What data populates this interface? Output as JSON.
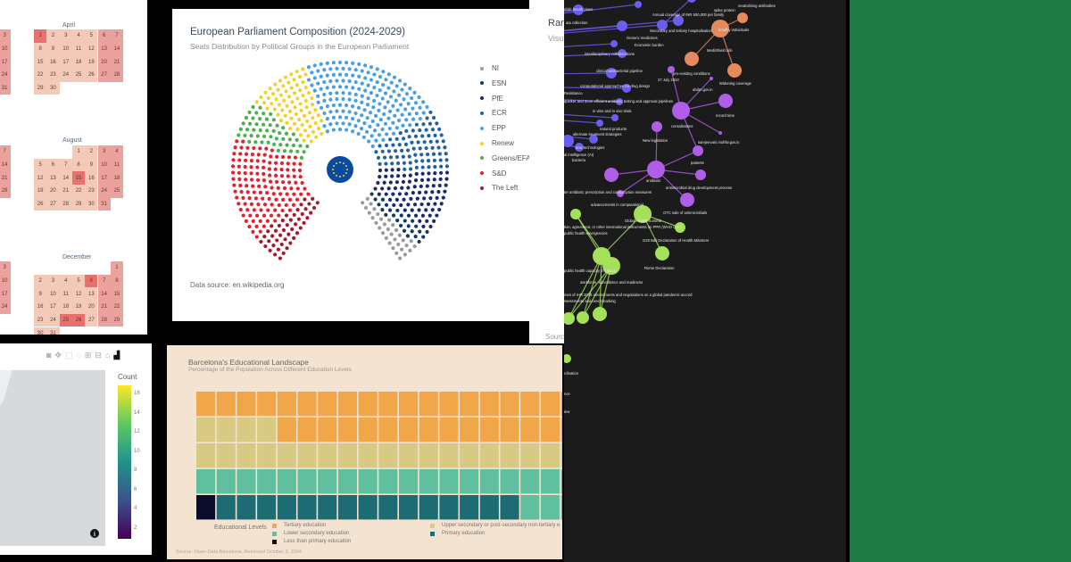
{
  "calendar": {
    "colors": {
      "weekday": "#f3cab8",
      "weekend": "#eca19c",
      "holiday": "#e8706f"
    },
    "months": [
      {
        "name": "April",
        "first_weekday": 0,
        "days": 30,
        "holidays": [
          1
        ]
      },
      {
        "name": "August",
        "first_weekday": 3,
        "days": 31,
        "holidays": [
          15
        ]
      },
      {
        "name": "December",
        "first_weekday": 6,
        "days": 31,
        "holidays": [
          6,
          25,
          26
        ]
      }
    ],
    "partial_columns": [
      [
        3,
        10,
        17,
        24,
        31
      ],
      [
        7,
        14,
        21,
        28
      ],
      [
        3,
        10,
        17,
        24
      ]
    ]
  },
  "map": {
    "toolbar": [
      "camera-icon",
      "pan-icon",
      "box-select-icon",
      "lasso-icon",
      "zoom-in-icon",
      "zoom-out-icon",
      "home-icon",
      "plotly-logo-icon"
    ],
    "colorbar": {
      "title": "Count",
      "ticks": [
        "16",
        "14",
        "12",
        "10",
        "8",
        "6",
        "4",
        "2"
      ],
      "colorscale": "viridis"
    }
  },
  "parliament": {
    "title": "European Parliament Composition (2024-2029)",
    "subtitle": "Seats Distribution by Political Groups in the European Parliament",
    "source": "Data source: en.wikipedia.org",
    "legend": [
      "NI",
      "ESN",
      "PfE",
      "ECR",
      "EPP",
      "Renew",
      "Greens/EFA",
      "S&D",
      "The Left"
    ]
  },
  "chart_data": [
    {
      "type": "parliament",
      "title": "European Parliament Composition (2024-2029)",
      "series": [
        {
          "name": "The Left",
          "value": 46,
          "color": "#a8182c"
        },
        {
          "name": "S&D",
          "value": 136,
          "color": "#e2222c"
        },
        {
          "name": "Greens/EFA",
          "value": 53,
          "color": "#4caf50"
        },
        {
          "name": "Renew",
          "value": 77,
          "color": "#f4d02a"
        },
        {
          "name": "EPP",
          "value": 188,
          "color": "#4a9fe0"
        },
        {
          "name": "ECR",
          "value": 78,
          "color": "#1f64a0"
        },
        {
          "name": "PfE",
          "value": 84,
          "color": "#1b2a6e"
        },
        {
          "name": "ESN",
          "value": 25,
          "color": "#0e3a66"
        },
        {
          "name": "NI",
          "value": 33,
          "color": "#9b9b9b"
        }
      ]
    },
    {
      "type": "waffle",
      "title": "Barcelona's Educational Landscape",
      "subtitle": "Percentage of the Population Across Different Education Levels",
      "legend_title": "Educational Levels",
      "series": [
        {
          "name": "Less than primary education",
          "value": 1,
          "color": "#0b0b2a"
        },
        {
          "name": "Primary education",
          "value": 15,
          "color": "#1d6b73"
        },
        {
          "name": "Lower secondary education",
          "value": 24,
          "color": "#5fbf9e"
        },
        {
          "name": "Upper secondary or post-secondary non-tertiary e",
          "value": 24,
          "color": "#d8c983"
        },
        {
          "name": "Tertiary education",
          "value": 36,
          "color": "#f1a649"
        }
      ],
      "source": "Source: Open Data Barcelona. Retrieved October 3, 2024."
    }
  ],
  "edu_legend_order": [
    4,
    3,
    2,
    1,
    0
  ],
  "right_panel": {
    "title_fragment": "Rar",
    "subtitle_fragment": "Visu",
    "source_fragment": "Sourc"
  },
  "network": {
    "colors": {
      "blue": "#6a5ef0",
      "purple": "#b05ee8",
      "orange": "#e58a5c",
      "green": "#a4e05a"
    },
    "labels": [
      "neutralising antibodies",
      "spike protein",
      "Annual coverage of INR 500,000 per family",
      "Secondary and tertiary hospitalisation",
      "Generic medicines",
      "Economic burden",
      "healthy individuals",
      "MediShield Life",
      "ublic health plans",
      "ata collection",
      "interdisciplinary collaborations",
      "clinical antibacterial pipeline",
      "pre-existing conditions",
      "27 July 2023",
      "Widening coverage",
      "abdm.gov.in",
      "computational approaches for drug design",
      "Resistance",
      "quicker and more efficient antibiotic testing and approval pipelines",
      "in vitro and in vivo trials",
      "record time",
      "natural products",
      "alternate treatment strategies",
      "consultations",
      "New legislation",
      "sarvjeevani.mohfw.gov.in",
      "new technologies",
      "al intelligence (AI)",
      "bacteria",
      "patients",
      "antibiotic",
      "ter antibiotic prescription and consumption measures",
      "antimicrobial drug development process",
      "advancements in computational",
      "OTC sale of antimicrobials",
      "tion, agreement, or other international instruments on PPR (WHO CA+)",
      "Global Health Summit",
      "public health emergencies",
      "G20 Bali Declaration of Health Ministers",
      "Rome Declaration",
      "public health capacity in LMICs",
      "workforce, surveillance and readiness",
      "mes of IHR 2005 amendments and negotiations on a global pandemic accord",
      "ssessments and benchmarking",
      "rdination",
      "nce",
      "iew"
    ]
  }
}
